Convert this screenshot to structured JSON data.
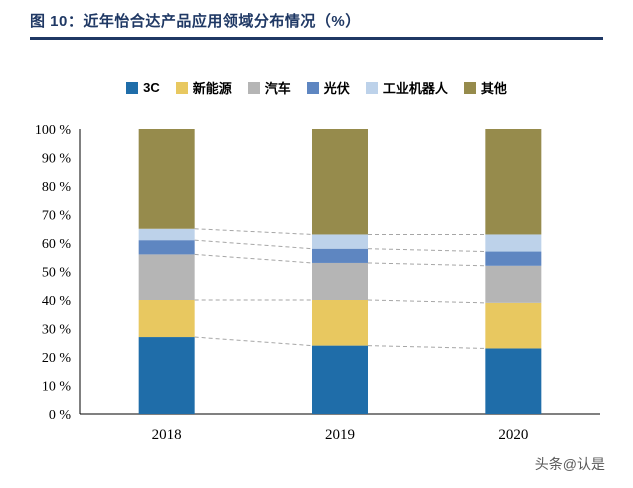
{
  "header": {
    "title": "图 10：近年怡合达产品应用领域分布情况（%）"
  },
  "watermark": "头条@认是",
  "chart_data": {
    "type": "bar",
    "stacked": true,
    "title": "图 10：近年怡合达产品应用领域分布情况（%）",
    "categories": [
      "2018",
      "2019",
      "2020"
    ],
    "series": [
      {
        "name": "3C",
        "color": "#1F6DA9",
        "values": [
          27,
          24,
          23
        ]
      },
      {
        "name": "新能源",
        "color": "#E8C860",
        "values": [
          13,
          16,
          16
        ]
      },
      {
        "name": "汽车",
        "color": "#B5B5B5",
        "values": [
          16,
          13,
          13
        ]
      },
      {
        "name": "光伏",
        "color": "#5E86C1",
        "values": [
          5,
          5,
          5
        ]
      },
      {
        "name": "工业机器人",
        "color": "#BDD2EA",
        "values": [
          4,
          5,
          6
        ]
      },
      {
        "name": "其他",
        "color": "#968B4C",
        "values": [
          35,
          37,
          37
        ]
      }
    ],
    "xlabel": "",
    "ylabel": "",
    "ylim": [
      0,
      100
    ],
    "ytick_step": 10,
    "ytick_suffix": " %",
    "grid": false,
    "legend_position": "top",
    "connector_lines": true
  }
}
